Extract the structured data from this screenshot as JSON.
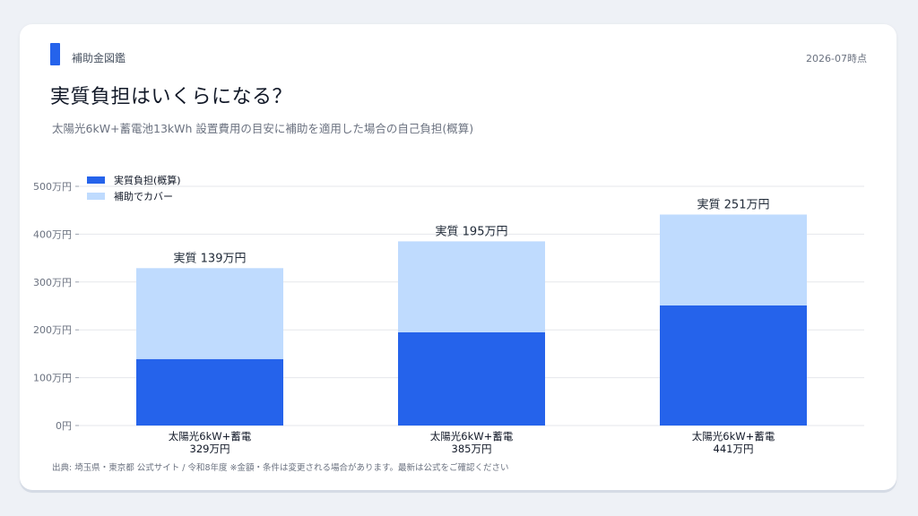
{
  "header": {
    "section_label": "補助金図鑑",
    "date": "2026-07時点",
    "title": "実質負担はいくらになる？",
    "subtitle": "太陽光6kW+蓄電池13kWh 設置費用の目安に補助を適用した場合の自己負担(概算)"
  },
  "footnote": "出典: 埼玉県・東京都 公式サイト / 令和8年度 ※金額・条件は変更される場合があります。最新は公式をご確認ください",
  "colors": {
    "self_burden": "#2563eb",
    "subsidy": "#bfdbfe",
    "grid": "#e5e7eb"
  },
  "chart_data": {
    "type": "bar",
    "stacked": true,
    "categories": [
      [
        "太陽光6kW+蓄電",
        "329万円"
      ],
      [
        "太陽光6kW+蓄電",
        "385万円"
      ],
      [
        "太陽光6kW+蓄電",
        "441万円"
      ]
    ],
    "series": [
      {
        "name": "実質負担(概算)",
        "values": [
          139,
          195,
          251
        ]
      },
      {
        "name": "補助でカバー",
        "values": [
          190,
          190,
          190
        ]
      }
    ],
    "totals": [
      329,
      385,
      441
    ],
    "value_labels": [
      "実質 139万円",
      "実質 195万円",
      "実質 251万円"
    ],
    "yticks": [
      "0円",
      "100万円",
      "200万円",
      "300万円",
      "400万円",
      "500万円"
    ],
    "ytick_values": [
      0,
      100,
      200,
      300,
      400,
      500
    ],
    "ylim": [
      0,
      500
    ],
    "grid": true,
    "legend_position": "top-left"
  }
}
